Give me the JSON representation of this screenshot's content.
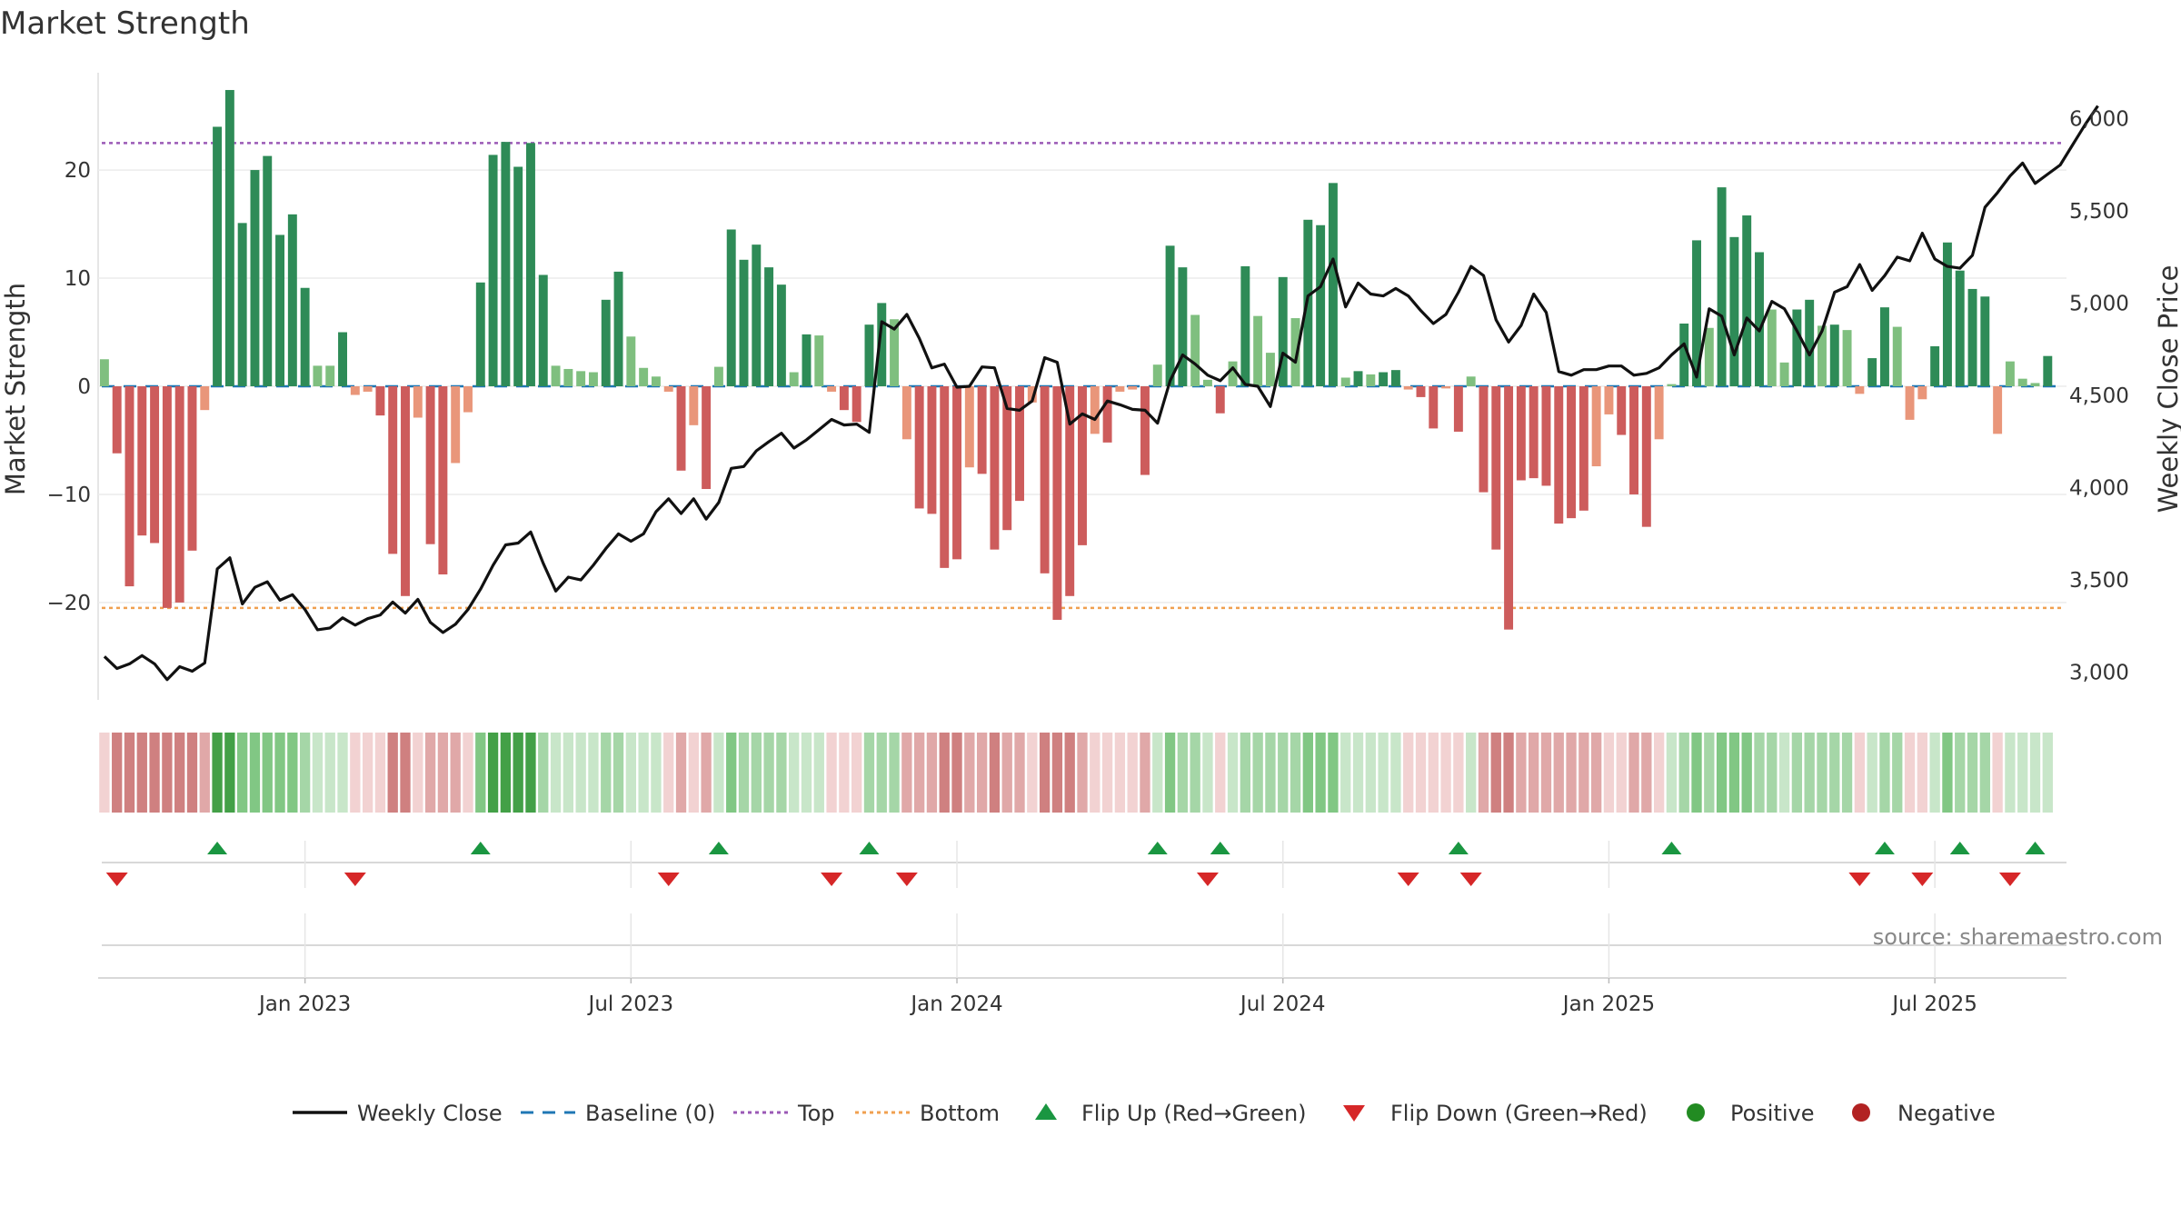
{
  "chart_data": {
    "type": "bar",
    "title": "Market Strength",
    "ylabel": "Market Strength",
    "y2label": "Weekly Close Price",
    "source": "source: sharemaestro.com",
    "ylim": [
      -29,
      29
    ],
    "y2lim": [
      2850,
      6250
    ],
    "yticks": [
      {
        "value": 20,
        "label": "20"
      },
      {
        "value": 10,
        "label": "10"
      },
      {
        "value": 0,
        "label": "0"
      },
      {
        "value": -10,
        "label": "−10"
      },
      {
        "value": -20,
        "label": "−20"
      }
    ],
    "y2ticks": [
      {
        "value": 6000,
        "label": "6,000"
      },
      {
        "value": 5500,
        "label": "5,500"
      },
      {
        "value": 5000,
        "label": "5,000"
      },
      {
        "value": 4500,
        "label": "4,500"
      },
      {
        "value": 4000,
        "label": "4,000"
      },
      {
        "value": 3500,
        "label": "3,500"
      },
      {
        "value": 3000,
        "label": "3,000"
      }
    ],
    "xticks": [
      {
        "week": 16,
        "label": "Jan 2023"
      },
      {
        "week": 42,
        "label": "Jul 2023"
      },
      {
        "week": 68,
        "label": "Jan 2024"
      },
      {
        "week": 94,
        "label": "Jul 2024"
      },
      {
        "week": 120,
        "label": "Jan 2025"
      },
      {
        "week": 146,
        "label": "Jul 2025"
      }
    ],
    "xlim": [
      -0.5,
      156.5
    ],
    "top_line": 22.5,
    "bottom_line": -20.5,
    "grid": true,
    "legend_position": "bottom-center",
    "colors": {
      "pos_strong": "#2e8b57",
      "pos_light": "#7fbf7f",
      "neg_strong": "#cd5c5c",
      "neg_light": "#e9967a",
      "price": "#111111",
      "baseline": "#1f77b4",
      "top": "#9b59b6",
      "bottom": "#f0a050",
      "flip_up": "#1a9641",
      "flip_down": "#d62728",
      "positive_dot": "#228b22",
      "negative_dot": "#b22222"
    },
    "strength": [
      2.5,
      -6.2,
      -18.5,
      -13.8,
      -14.5,
      -20.5,
      -20.0,
      -15.2,
      -2.2,
      24.0,
      27.4,
      15.1,
      20.0,
      21.3,
      14.0,
      15.9,
      9.1,
      1.9,
      1.9,
      5.0,
      -0.8,
      -0.5,
      -2.7,
      -15.5,
      -19.4,
      -2.9,
      -14.6,
      -17.4,
      -7.1,
      -2.4,
      9.6,
      21.4,
      22.6,
      20.3,
      22.5,
      10.3,
      1.9,
      1.6,
      1.4,
      1.3,
      8.0,
      10.6,
      4.6,
      1.7,
      0.9,
      -0.5,
      -7.8,
      -3.6,
      -9.5,
      1.8,
      14.5,
      11.7,
      13.1,
      11.0,
      9.4,
      1.3,
      4.8,
      4.7,
      -0.5,
      -2.2,
      -3.3,
      5.7,
      7.7,
      6.2,
      -4.9,
      -11.3,
      -11.8,
      -16.8,
      -16.0,
      -7.5,
      -8.1,
      -15.1,
      -13.3,
      -10.6,
      -1.5,
      -17.3,
      -21.6,
      -19.4,
      -14.7,
      -4.4,
      -5.2,
      -0.5,
      -0.3,
      -8.2,
      2.0,
      13.0,
      11.0,
      6.6,
      0.6,
      -2.5,
      2.3,
      11.1,
      6.5,
      3.1,
      10.1,
      6.3,
      15.4,
      14.9,
      18.8,
      0.8,
      1.4,
      1.1,
      1.3,
      1.5,
      -0.3,
      -1.0,
      -3.9,
      -0.2,
      -4.2,
      0.9,
      -9.8,
      -15.1,
      -22.5,
      -8.7,
      -8.5,
      -9.2,
      -12.7,
      -12.2,
      -11.5,
      -7.4,
      -2.6,
      -4.5,
      -10.0,
      -13.0,
      -4.9,
      0.2,
      5.8,
      13.5,
      5.4,
      18.4,
      13.8,
      15.8,
      12.4,
      7.1,
      2.2,
      7.1,
      8.0,
      5.6,
      5.7,
      5.2,
      -0.7,
      2.6,
      7.3,
      5.5,
      -3.1,
      -1.2,
      3.7,
      13.3,
      10.7,
      9.0,
      8.3,
      -4.4,
      2.3,
      0.7,
      0.3,
      2.8
    ],
    "price": [
      3085,
      3020,
      3045,
      3090,
      3045,
      2960,
      3030,
      3005,
      3050,
      3560,
      3620,
      3370,
      3460,
      3490,
      3390,
      3420,
      3340,
      3230,
      3240,
      3295,
      3255,
      3290,
      3310,
      3380,
      3320,
      3395,
      3270,
      3215,
      3260,
      3340,
      3450,
      3580,
      3690,
      3700,
      3760,
      3590,
      3440,
      3515,
      3500,
      3580,
      3670,
      3750,
      3710,
      3750,
      3870,
      3940,
      3860,
      3940,
      3830,
      3920,
      4105,
      4115,
      4200,
      4250,
      4295,
      4215,
      4260,
      4315,
      4370,
      4340,
      4345,
      4300,
      4900,
      4860,
      4940,
      4810,
      4650,
      4670,
      4545,
      4550,
      4655,
      4650,
      4430,
      4420,
      4470,
      4705,
      4680,
      4345,
      4400,
      4370,
      4470,
      4450,
      4425,
      4420,
      4350,
      4580,
      4720,
      4670,
      4610,
      4580,
      4650,
      4560,
      4550,
      4440,
      4730,
      4680,
      5040,
      5090,
      5240,
      4980,
      5110,
      5050,
      5040,
      5080,
      5040,
      4960,
      4890,
      4940,
      5060,
      5200,
      5150,
      4910,
      4790,
      4880,
      5050,
      4950,
      4630,
      4610,
      4640,
      4640,
      4660,
      4660,
      4610,
      4620,
      4650,
      4720,
      4780,
      4600,
      4970,
      4930,
      4720,
      4920,
      4850,
      5010,
      4970,
      4850,
      4720,
      4850,
      5060,
      5090,
      5210,
      5070,
      5150,
      5250,
      5230,
      5380,
      5240,
      5200,
      5190,
      5260,
      5520,
      5600,
      5690,
      5760,
      5650,
      5700,
      5750,
      5860,
      5970,
      6070
    ],
    "band": [
      "h1",
      "h3",
      "h3",
      "h3",
      "h3",
      "h3",
      "h3",
      "h3",
      "h2",
      "g4",
      "g4",
      "g3",
      "g3",
      "g3",
      "g3",
      "g3",
      "g2",
      "g1",
      "g1",
      "g1",
      "h1",
      "h1",
      "h1",
      "h3",
      "h3",
      "h1",
      "h2",
      "h2",
      "h2",
      "h1",
      "g3",
      "g4",
      "g4",
      "g4",
      "g4",
      "g2",
      "g1",
      "g1",
      "g1",
      "g1",
      "g2",
      "g2",
      "g1",
      "g1",
      "g1",
      "h1",
      "h2",
      "h1",
      "h2",
      "g1",
      "g3",
      "g2",
      "g2",
      "g2",
      "g2",
      "g1",
      "g1",
      "g1",
      "h1",
      "h1",
      "h1",
      "g2",
      "g2",
      "g2",
      "h2",
      "h2",
      "h2",
      "h3",
      "h3",
      "h2",
      "h2",
      "h3",
      "h2",
      "h2",
      "h1",
      "h3",
      "h3",
      "h3",
      "h2",
      "h1",
      "h1",
      "h1",
      "h1",
      "h2",
      "g1",
      "g3",
      "g2",
      "g2",
      "g1",
      "h1",
      "g1",
      "g2",
      "g2",
      "g2",
      "g2",
      "g2",
      "g3",
      "g3",
      "g3",
      "g1",
      "g1",
      "g1",
      "g1",
      "g1",
      "h1",
      "h1",
      "h1",
      "h1",
      "h1",
      "g1",
      "h2",
      "h3",
      "h3",
      "h2",
      "h2",
      "h2",
      "h2",
      "h2",
      "h2",
      "h2",
      "h1",
      "h1",
      "h2",
      "h2",
      "h1",
      "g1",
      "g2",
      "g3",
      "g2",
      "g3",
      "g3",
      "g3",
      "g2",
      "g2",
      "g1",
      "g2",
      "g2",
      "g2",
      "g2",
      "g2",
      "h1",
      "g1",
      "g2",
      "g2",
      "h1",
      "h1",
      "g1",
      "g3",
      "g2",
      "g2",
      "g2",
      "h1",
      "g1",
      "g1",
      "g1",
      "g1"
    ],
    "flip_up": [
      9,
      30,
      49,
      61,
      84,
      89,
      108,
      125,
      142,
      148,
      154
    ],
    "flip_down": [
      1,
      20,
      45,
      58,
      64,
      88,
      104,
      109,
      140,
      145,
      152
    ],
    "legend": [
      {
        "kind": "line",
        "label": "Weekly Close"
      },
      {
        "kind": "dash",
        "label": "Baseline (0)"
      },
      {
        "kind": "dot-top",
        "label": "Top"
      },
      {
        "kind": "dot-bottom",
        "label": "Bottom"
      },
      {
        "kind": "tri-up",
        "label": "Flip Up (Red→Green)"
      },
      {
        "kind": "tri-down",
        "label": "Flip Down (Green→Red)"
      },
      {
        "kind": "circle-pos",
        "label": "Positive"
      },
      {
        "kind": "circle-neg",
        "label": "Negative"
      }
    ]
  }
}
